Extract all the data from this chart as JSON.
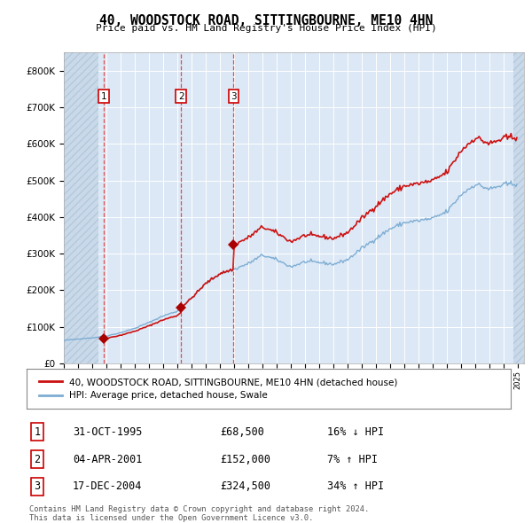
{
  "title": "40, WOODSTOCK ROAD, SITTINGBOURNE, ME10 4HN",
  "subtitle": "Price paid vs. HM Land Registry's House Price Index (HPI)",
  "hpi_color": "#7dadd4",
  "property_color": "#cc1111",
  "sale_points": [
    {
      "date": [
        1995,
        10,
        31
      ],
      "price": 68500,
      "label": "1"
    },
    {
      "date": [
        2001,
        4,
        4
      ],
      "price": 152000,
      "label": "2"
    },
    {
      "date": [
        2004,
        12,
        17
      ],
      "price": 324500,
      "label": "3"
    }
  ],
  "legend_property": "40, WOODSTOCK ROAD, SITTINGBOURNE, ME10 4HN (detached house)",
  "legend_hpi": "HPI: Average price, detached house, Swale",
  "table_rows": [
    {
      "num": "1",
      "date": "31-OCT-1995",
      "price": "£68,500",
      "hpi": "16% ↓ HPI"
    },
    {
      "num": "2",
      "date": "04-APR-2001",
      "price": "£152,000",
      "hpi": "7% ↑ HPI"
    },
    {
      "num": "3",
      "date": "17-DEC-2004",
      "price": "£324,500",
      "hpi": "34% ↑ HPI"
    }
  ],
  "footer": "Contains HM Land Registry data © Crown copyright and database right 2024.\nThis data is licensed under the Open Government Licence v3.0.",
  "ylim": [
    0,
    850000
  ],
  "yticks": [
    0,
    100000,
    200000,
    300000,
    400000,
    500000,
    600000,
    700000,
    800000
  ],
  "ytick_labels": [
    "£0",
    "£100K",
    "£200K",
    "£300K",
    "£400K",
    "£500K",
    "£600K",
    "£700K",
    "£800K"
  ],
  "bg_color": "#dce8f5",
  "hatch_color": "#c8d8e8",
  "grid_color": "#ffffff",
  "fig_width": 6.0,
  "fig_height": 5.9,
  "dpi": 100
}
